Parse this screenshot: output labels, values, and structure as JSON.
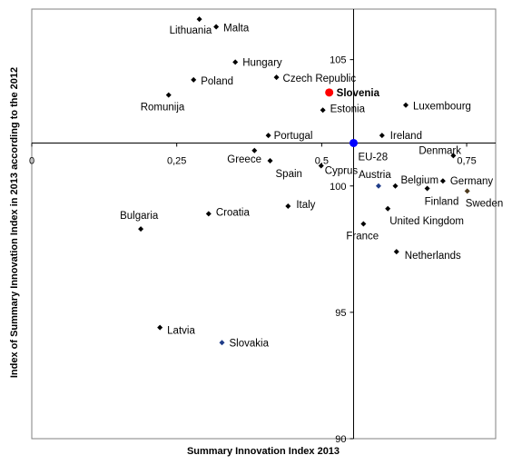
{
  "chart_data": {
    "type": "scatter",
    "title": "",
    "xlabel": "Summary Innovation Index 2013",
    "ylabel": "Index of Summary Innovation Index in 2013 according to the 2012",
    "xlim": [
      0,
      0.8
    ],
    "ylim": [
      90,
      107
    ],
    "x_ticks": [
      {
        "value": 0,
        "label": "0"
      },
      {
        "value": 0.25,
        "label": "0,25"
      },
      {
        "value": 0.5,
        "label": "0,5"
      },
      {
        "value": 0.75,
        "label": "0,75"
      }
    ],
    "y_ticks": [
      {
        "value": 90,
        "label": "90"
      },
      {
        "value": 95,
        "label": "95"
      },
      {
        "value": 100,
        "label": "100"
      },
      {
        "value": 105,
        "label": "105"
      }
    ],
    "reference_lines": {
      "x": 0.555,
      "y": 101.7
    },
    "grid": false,
    "colors": {
      "default": "#000000",
      "highlight": "#ff0000",
      "reference": "#0000ff",
      "sweden": "#4d3a1e",
      "accent_blue": "#1f3c88"
    },
    "points": [
      {
        "label": "Lithuania",
        "x": 0.289,
        "y": 106.6,
        "color": "#000000"
      },
      {
        "label": "Malta",
        "x": 0.318,
        "y": 106.3,
        "color": "#000000"
      },
      {
        "label": "Hungary",
        "x": 0.351,
        "y": 104.9,
        "color": "#000000"
      },
      {
        "label": "Poland",
        "x": 0.279,
        "y": 104.2,
        "color": "#000000"
      },
      {
        "label": "Czech Republic",
        "x": 0.422,
        "y": 104.3,
        "color": "#000000"
      },
      {
        "label": "Slovenia",
        "x": 0.513,
        "y": 103.7,
        "color": "#ff0000",
        "highlight": true
      },
      {
        "label": "Romunija",
        "x": 0.236,
        "y": 103.6,
        "color": "#000000"
      },
      {
        "label": "Estonia",
        "x": 0.502,
        "y": 103.0,
        "color": "#000000"
      },
      {
        "label": "Luxembourg",
        "x": 0.645,
        "y": 103.2,
        "color": "#000000"
      },
      {
        "label": "Portugal",
        "x": 0.408,
        "y": 102.0,
        "color": "#000000"
      },
      {
        "label": "Ireland",
        "x": 0.604,
        "y": 102.0,
        "color": "#000000"
      },
      {
        "label": "EU-28",
        "x": 0.555,
        "y": 101.7,
        "color": "#0000ff",
        "reference": true
      },
      {
        "label": "Denmark",
        "x": 0.727,
        "y": 101.2,
        "color": "#000000"
      },
      {
        "label": "Greece",
        "x": 0.384,
        "y": 101.4,
        "color": "#000000"
      },
      {
        "label": "Spain",
        "x": 0.411,
        "y": 101.0,
        "color": "#000000"
      },
      {
        "label": "Cyprus",
        "x": 0.499,
        "y": 100.8,
        "color": "#000000"
      },
      {
        "label": "Austria",
        "x": 0.598,
        "y": 100.0,
        "color": "#1f3c88"
      },
      {
        "label": "Belgium",
        "x": 0.627,
        "y": 100.0,
        "color": "#000000"
      },
      {
        "label": "Germany",
        "x": 0.709,
        "y": 100.2,
        "color": "#000000"
      },
      {
        "label": "Finland",
        "x": 0.682,
        "y": 99.9,
        "color": "#000000"
      },
      {
        "label": "Sweden",
        "x": 0.751,
        "y": 99.8,
        "color": "#4d3a1e"
      },
      {
        "label": "Italy",
        "x": 0.442,
        "y": 99.2,
        "color": "#000000"
      },
      {
        "label": "Croatia",
        "x": 0.305,
        "y": 98.9,
        "color": "#000000"
      },
      {
        "label": "United Kingdom",
        "x": 0.614,
        "y": 99.1,
        "color": "#000000"
      },
      {
        "label": "Bulgaria",
        "x": 0.188,
        "y": 98.3,
        "color": "#000000"
      },
      {
        "label": "France",
        "x": 0.572,
        "y": 98.5,
        "color": "#000000"
      },
      {
        "label": "Netherlands",
        "x": 0.629,
        "y": 97.4,
        "color": "#000000"
      },
      {
        "label": "Latvia",
        "x": 0.221,
        "y": 94.4,
        "color": "#000000"
      },
      {
        "label": "Slovakia",
        "x": 0.328,
        "y": 93.8,
        "color": "#1f3c88"
      }
    ]
  }
}
